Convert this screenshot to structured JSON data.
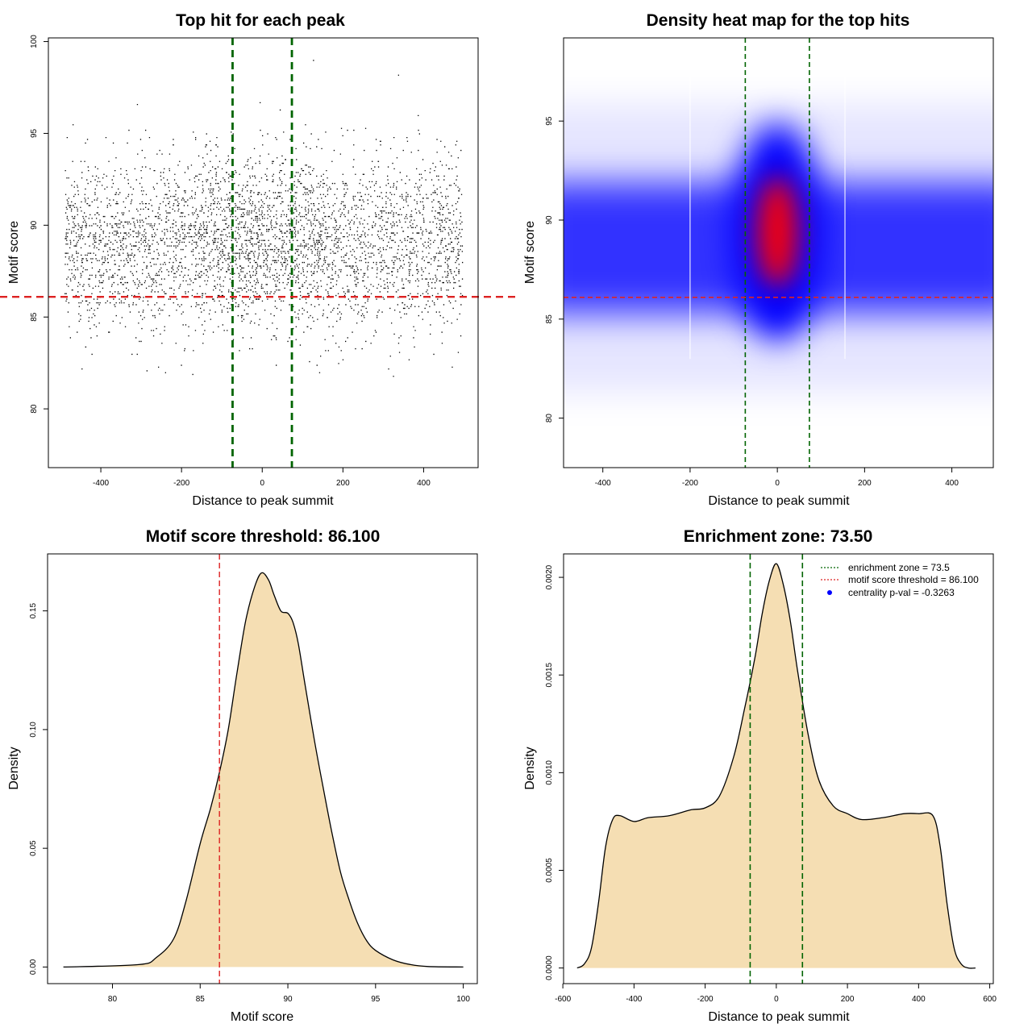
{
  "chart_data": [
    {
      "id": "scatter",
      "type": "scatter",
      "title": "Top hit for each peak",
      "xlabel": "Distance to peak summit",
      "ylabel": "Motif score",
      "xlim": [
        -530,
        535
      ],
      "ylim": [
        76.8,
        100.2
      ],
      "xticks": [
        -400,
        -200,
        0,
        200,
        400
      ],
      "yticks": [
        80,
        85,
        90,
        95,
        100
      ],
      "point_cloud": {
        "n_points": 16000,
        "x_range": [
          -490,
          495
        ],
        "score_mean": 89.0,
        "score_sd": 2.4,
        "score_clip": [
          81.8,
          99.3
        ],
        "center_mean": 90.0,
        "center_sd": 2.1,
        "center_halfwidth": 160
      },
      "vlines": {
        "values": [
          -73.5,
          73.5
        ],
        "color": "#006400"
      },
      "hline": {
        "value": 86.1,
        "color": "#dd2222"
      }
    },
    {
      "id": "heatmap",
      "type": "heatmap",
      "title": "Density heat map for the top hits",
      "xlabel": "Distance to peak summit",
      "ylabel": "Motif score",
      "xlim": [
        -490,
        495
      ],
      "ylim": [
        77.5,
        99.2
      ],
      "xticks": [
        -400,
        -200,
        0,
        200,
        400
      ],
      "yticks": [
        80,
        85,
        90,
        95
      ],
      "background_band": {
        "y_center": 88.6,
        "y_halfwidth": 3.3,
        "x_range": [
          -490,
          495
        ]
      },
      "hotspot": {
        "x_center": 0,
        "y_center": 89.4,
        "x_halfwidth": 105,
        "y_halfwidth": 5.5
      },
      "core": {
        "x_center": 0,
        "y_center": 89.4,
        "x_halfwidth": 48,
        "y_halfwidth": 2.8
      },
      "colors": {
        "low": "#ffffff",
        "mid": "#0000ff",
        "high": "#ff0000"
      },
      "seams": [
        -200,
        155
      ],
      "vlines": {
        "values": [
          -73.5,
          73.5
        ],
        "color": "#006400"
      },
      "hline": {
        "value": 86.1,
        "color": "#dd2222"
      }
    },
    {
      "id": "score_density",
      "type": "area",
      "title": "Motif score threshold: 86.100",
      "xlabel": "Motif score",
      "ylabel": "Density",
      "xlim": [
        76.3,
        100.8
      ],
      "ylim": [
        -0.007,
        0.174
      ],
      "xticks": [
        80,
        85,
        90,
        95,
        100
      ],
      "yticks": [
        0.0,
        0.05,
        0.1,
        0.15
      ],
      "ytick_labels": [
        "0.00",
        "0.05",
        "0.10",
        "0.15"
      ],
      "x": [
        77.2,
        81.5,
        82.5,
        83.5,
        84.2,
        85.0,
        85.6,
        86.1,
        86.6,
        87.1,
        87.6,
        88.1,
        88.5,
        88.9,
        89.2,
        89.6,
        90.0,
        90.3,
        90.6,
        91.0,
        91.5,
        92.0,
        92.5,
        93.0,
        93.5,
        94.0,
        94.5,
        95.0,
        96.0,
        97.0,
        98.0,
        100.0
      ],
      "y": [
        0.0,
        0.001,
        0.004,
        0.012,
        0.028,
        0.052,
        0.067,
        0.082,
        0.1,
        0.124,
        0.146,
        0.16,
        0.166,
        0.163,
        0.157,
        0.15,
        0.149,
        0.145,
        0.136,
        0.118,
        0.096,
        0.076,
        0.057,
        0.04,
        0.028,
        0.018,
        0.011,
        0.007,
        0.003,
        0.001,
        0.0002,
        0.0
      ],
      "fill": "#f5deb3",
      "vline": {
        "value": 86.1,
        "color": "#dd2222"
      }
    },
    {
      "id": "distance_density",
      "type": "area",
      "title": "Enrichment zone: 73.50",
      "xlabel": "Distance to peak summit",
      "ylabel": "Density",
      "xlim": [
        -598,
        610
      ],
      "ylim": [
        -8e-05,
        0.00212
      ],
      "xticks": [
        -600,
        -400,
        -200,
        0,
        200,
        400,
        600
      ],
      "yticks": [
        0.0,
        0.0005,
        0.001,
        0.0015,
        0.002
      ],
      "ytick_labels": [
        "0.0000",
        "0.0005",
        "0.0010",
        "0.0015",
        "0.0020"
      ],
      "x": [
        -560,
        -540,
        -520,
        -500,
        -480,
        -460,
        -440,
        -400,
        -360,
        -300,
        -240,
        -200,
        -160,
        -120,
        -90,
        -60,
        -40,
        -20,
        0,
        20,
        40,
        60,
        90,
        120,
        160,
        200,
        240,
        300,
        360,
        400,
        440,
        460,
        480,
        500,
        520,
        540,
        560
      ],
      "y": [
        0.0,
        2e-05,
        0.0001,
        0.00033,
        0.00062,
        0.00076,
        0.00078,
        0.00075,
        0.00077,
        0.00078,
        0.00081,
        0.00082,
        0.00088,
        0.00108,
        0.00132,
        0.00159,
        0.00181,
        0.00198,
        0.00207,
        0.00196,
        0.00177,
        0.00152,
        0.00119,
        0.00096,
        0.00083,
        0.00079,
        0.00076,
        0.00077,
        0.00079,
        0.00079,
        0.00078,
        0.00063,
        0.00033,
        0.0001,
        2e-05,
        0.0,
        0.0
      ],
      "fill": "#f5deb3",
      "vlines": {
        "values": [
          -73.5,
          73.5
        ],
        "color": "#006400"
      },
      "legend": {
        "position": "top-right",
        "entries": [
          {
            "label": "enrichment zone = 73.5",
            "color": "#006400",
            "style": "dotted-line"
          },
          {
            "label": "motif score threshold = 86.100",
            "color": "#dd2222",
            "style": "dotted-line"
          },
          {
            "label": "centrality p-val = -0.3263",
            "color": "#0000ff",
            "style": "point"
          }
        ]
      }
    }
  ]
}
